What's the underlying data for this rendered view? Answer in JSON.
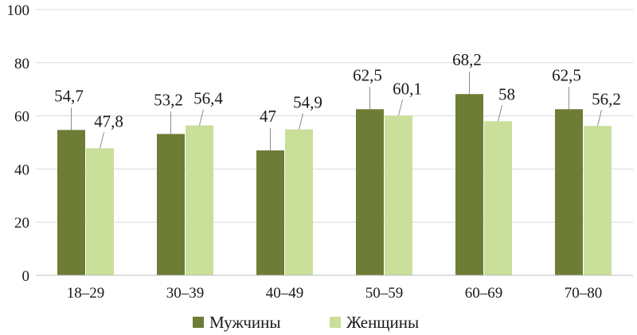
{
  "chart_data": {
    "type": "bar",
    "categories": [
      "18–29",
      "30–39",
      "40–49",
      "50–59",
      "60–69",
      "70–80"
    ],
    "series": [
      {
        "name": "Мужчины",
        "values": [
          54.7,
          53.2,
          47,
          62.5,
          68.2,
          62.5
        ],
        "labels": [
          "54,7",
          "53,2",
          "47",
          "62,5",
          "68,2",
          "62,5"
        ],
        "color": "#6e7d36"
      },
      {
        "name": "Женщины",
        "values": [
          47.8,
          56.4,
          54.9,
          60.1,
          58,
          56.2
        ],
        "labels": [
          "47,8",
          "56,4",
          "54,9",
          "60,1",
          "58",
          "56,2"
        ],
        "color": "#c9df9a"
      }
    ],
    "ylim": [
      0,
      100
    ],
    "yticks": [
      "0",
      "20",
      "40",
      "60",
      "80",
      "100"
    ],
    "grid": true,
    "legend_position": "bottom"
  }
}
